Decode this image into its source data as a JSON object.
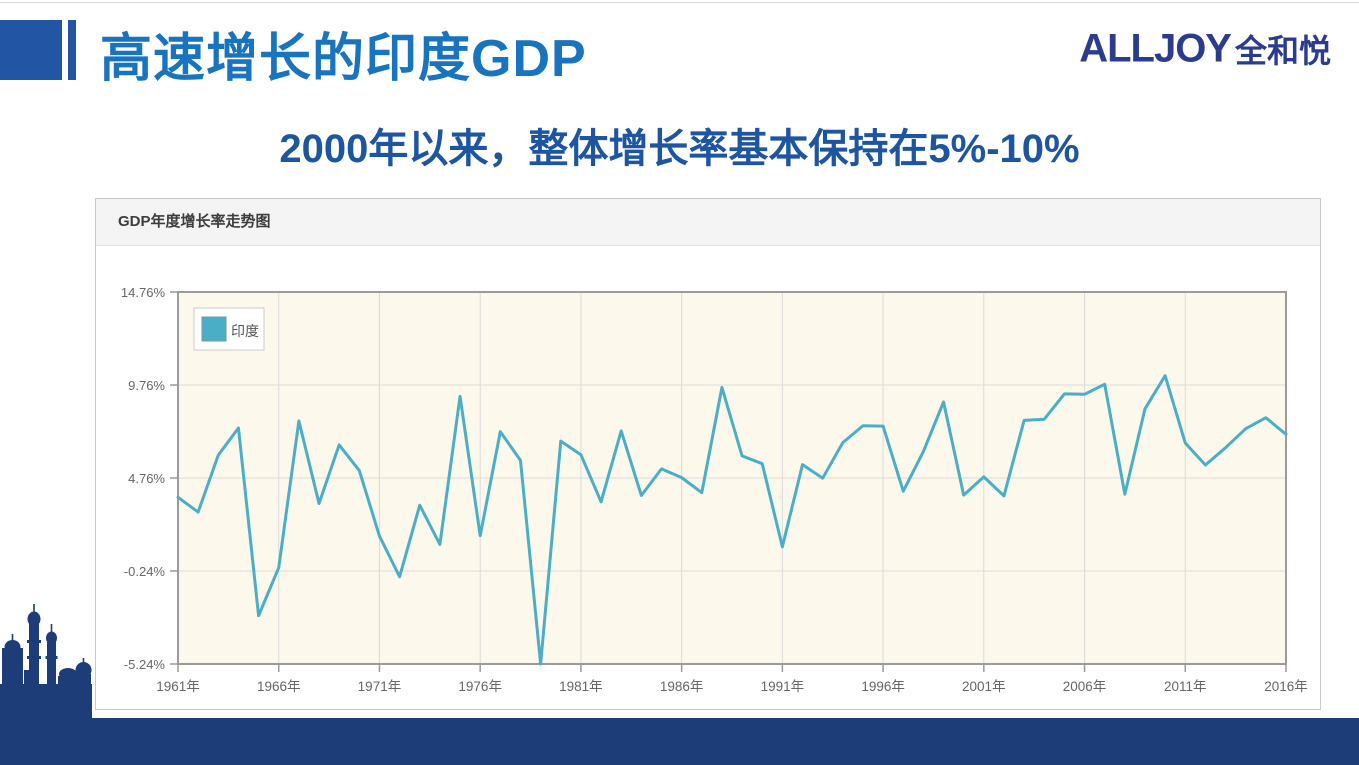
{
  "header": {
    "title": "高速增长的印度GDP",
    "logo_latin": "ALLJOY",
    "logo_cjk": "全和悦"
  },
  "subtitle": "2000年以来，整体增长率基本保持在5%-10%",
  "chart_panel": {
    "header": "GDP年度增长率走势图"
  },
  "colors": {
    "brand_navy": "#2b3c8f",
    "header_block_blue": "#2355a5",
    "title_blue": "#1874be",
    "subtitle_blue": "#1d55a0",
    "footer_navy": "#1c3d78",
    "line_teal": "#4baec7",
    "plot_cream": "#fcf8eb"
  },
  "chart_data": {
    "type": "line",
    "title": "GDP年度增长率走势图",
    "legend_position": "top-left-inside",
    "grid": true,
    "plot_bg": "#fcf8eb",
    "line_color": "#4baec7",
    "ylim": [
      -5.24,
      14.76
    ],
    "y_ticks": [
      14.76,
      9.76,
      4.76,
      -0.24,
      -5.24
    ],
    "y_tick_labels": [
      "14.76%",
      "9.76%",
      "4.76%",
      "-0.24%",
      "-5.24%"
    ],
    "x_ticks": [
      1961,
      1966,
      1971,
      1976,
      1981,
      1986,
      1991,
      1996,
      2001,
      2006,
      2011,
      2016
    ],
    "x_tick_labels": [
      "1961年",
      "1966年",
      "1971年",
      "1976年",
      "1981年",
      "1986年",
      "1991年",
      "1996年",
      "2001年",
      "2006年",
      "2011年",
      "2016年"
    ],
    "x": [
      1961,
      1962,
      1963,
      1964,
      1965,
      1966,
      1967,
      1968,
      1969,
      1970,
      1971,
      1972,
      1973,
      1974,
      1975,
      1976,
      1977,
      1978,
      1979,
      1980,
      1981,
      1982,
      1983,
      1984,
      1985,
      1986,
      1987,
      1988,
      1989,
      1990,
      1991,
      1992,
      1993,
      1994,
      1995,
      1996,
      1997,
      1998,
      1999,
      2000,
      2001,
      2002,
      2003,
      2004,
      2005,
      2006,
      2007,
      2008,
      2009,
      2010,
      2011,
      2012,
      2013,
      2014,
      2015,
      2016
    ],
    "series": [
      {
        "name": "印度",
        "values": [
          3.72,
          2.93,
          5.99,
          7.45,
          -2.64,
          -0.06,
          7.83,
          3.39,
          6.54,
          5.16,
          1.64,
          -0.55,
          3.3,
          1.19,
          9.15,
          1.66,
          7.25,
          5.71,
          -5.24,
          6.74,
          6.01,
          3.48,
          7.29,
          3.82,
          5.25,
          4.78,
          3.97,
          9.63,
          5.95,
          5.53,
          1.06,
          5.48,
          4.75,
          6.66,
          7.57,
          7.55,
          4.05,
          6.18,
          8.85,
          3.84,
          4.82,
          3.8,
          7.86,
          7.92,
          9.28,
          9.26,
          9.8,
          3.89,
          8.48,
          10.26,
          6.64,
          5.46,
          6.39,
          7.41,
          8.0,
          7.11
        ]
      }
    ]
  }
}
